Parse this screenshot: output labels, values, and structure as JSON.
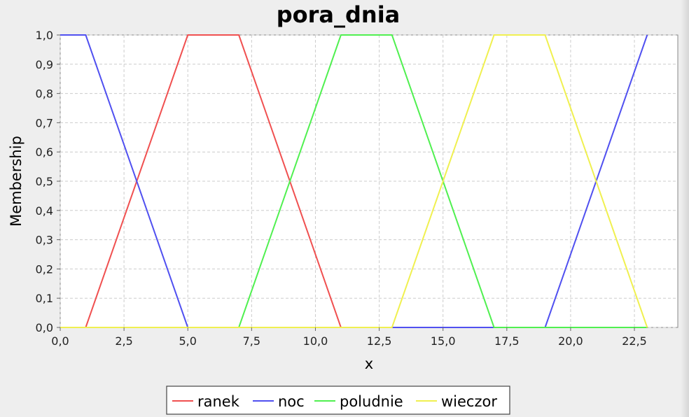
{
  "chart_data": {
    "type": "line",
    "title": "pora_dnia",
    "xlabel": "x",
    "ylabel": "Membership",
    "xlim": [
      0,
      24.2
    ],
    "ylim": [
      0,
      1.0
    ],
    "x_ticks": [
      "0,0",
      "2,5",
      "5,0",
      "7,5",
      "10,0",
      "12,5",
      "15,0",
      "17,5",
      "20,0",
      "22,5"
    ],
    "x_tick_values": [
      0,
      2.5,
      5,
      7.5,
      10,
      12.5,
      15,
      17.5,
      20,
      22.5
    ],
    "y_ticks": [
      "0,0",
      "0,1",
      "0,2",
      "0,3",
      "0,4",
      "0,5",
      "0,6",
      "0,7",
      "0,8",
      "0,9",
      "1,0"
    ],
    "y_tick_values": [
      0,
      0.1,
      0.2,
      0.3,
      0.4,
      0.5,
      0.6,
      0.7,
      0.8,
      0.9,
      1.0
    ],
    "grid": true,
    "legend_position": "bottom",
    "series": [
      {
        "name": "ranek",
        "color": "#f05050",
        "x": [
          0,
          1,
          5,
          7,
          11,
          23
        ],
        "y": [
          0,
          0,
          1,
          1,
          0,
          0
        ]
      },
      {
        "name": "noc",
        "color": "#5050f0",
        "x": [
          0,
          1,
          5,
          19,
          23
        ],
        "y": [
          1,
          1,
          0,
          0,
          1
        ]
      },
      {
        "name": "poludnie",
        "color": "#50f050",
        "x": [
          0,
          7,
          11,
          13,
          17,
          23
        ],
        "y": [
          0,
          0,
          1,
          1,
          0,
          0
        ]
      },
      {
        "name": "wieczor",
        "color": "#f0f050",
        "x": [
          0,
          13,
          17,
          19,
          23
        ],
        "y": [
          0,
          0,
          1,
          1,
          0
        ]
      }
    ]
  }
}
